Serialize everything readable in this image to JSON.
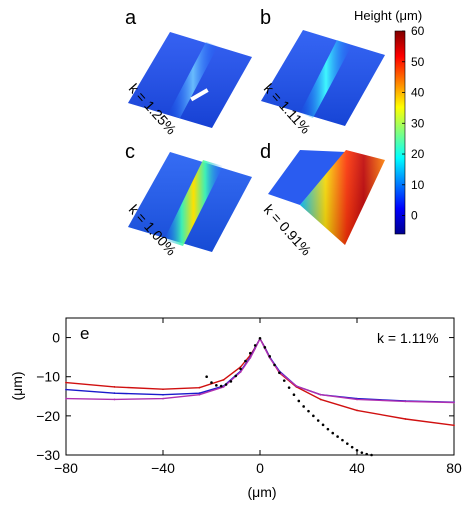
{
  "panels": {
    "a": {
      "letter": "a",
      "k_label": "k = 1.25%"
    },
    "b": {
      "letter": "b",
      "k_label": "k = 1.11%"
    },
    "c": {
      "letter": "c",
      "k_label": "k = 1.00%"
    },
    "d": {
      "letter": "d",
      "k_label": "k = 0.91%"
    }
  },
  "colorbar": {
    "title": "Height (μm)",
    "ticks": [
      "60",
      "50",
      "40",
      "30",
      "20",
      "10",
      "0"
    ],
    "range": [
      -6,
      60
    ],
    "colormap": "jet"
  },
  "chart_data": {
    "type": "scatter",
    "panel_letter": "e",
    "annotation": "k = 1.11%",
    "xlabel": "(μm)",
    "ylabel": "(μm)",
    "xlim": [
      -80,
      80
    ],
    "ylim": [
      -30,
      5
    ],
    "x_ticks": [
      -80,
      -40,
      0,
      40,
      80
    ],
    "y_ticks": [
      0,
      -10,
      -20,
      -30
    ],
    "x_tick_labels": [
      "−80",
      "−40",
      "0",
      "40",
      "80"
    ],
    "y_tick_labels": [
      "0",
      "−10",
      "−20",
      "−30"
    ],
    "grid": false,
    "series": [
      {
        "color": "#d01010",
        "kind": "line",
        "x": [
          -80,
          -60,
          -40,
          -25,
          -15,
          -8,
          -4,
          -2,
          0,
          2,
          4,
          8,
          15,
          25,
          40,
          60,
          80
        ],
        "y": [
          -11.5,
          -12.6,
          -13.2,
          -12.8,
          -10.8,
          -7.5,
          -4.5,
          -2.5,
          -0.3,
          -2.5,
          -5,
          -9,
          -12.6,
          -15.8,
          -18.6,
          -20.8,
          -22.4
        ]
      },
      {
        "color": "#1a1acc",
        "kind": "line",
        "x": [
          -80,
          -60,
          -40,
          -25,
          -15,
          -8,
          -4,
          -2,
          0,
          2,
          4,
          8,
          15,
          25,
          40,
          60,
          80
        ],
        "y": [
          -13.3,
          -14.2,
          -14.6,
          -14.2,
          -12.4,
          -8.6,
          -5,
          -2.6,
          -0.3,
          -2.6,
          -5,
          -8.6,
          -12.4,
          -14.6,
          -15.6,
          -16.2,
          -16.5
        ]
      },
      {
        "color": "#b030b0",
        "kind": "line",
        "x": [
          -80,
          -60,
          -40,
          -25,
          -15,
          -8,
          -4,
          -2,
          0,
          2,
          4,
          8,
          15,
          25,
          40,
          60,
          80
        ],
        "y": [
          -15.6,
          -15.8,
          -15.6,
          -14.6,
          -12.6,
          -8.8,
          -5.2,
          -2.8,
          -0.3,
          -2.8,
          -5.2,
          -8.8,
          -12.4,
          -14.6,
          -15.8,
          -16.3,
          -16.6
        ]
      },
      {
        "color": "#000000",
        "kind": "points",
        "x": [
          -22,
          -20,
          -18,
          -16,
          -14,
          -12,
          -10,
          -8,
          -6,
          -4,
          -2,
          0,
          2,
          4,
          6,
          8,
          10,
          12,
          14,
          16,
          18,
          20,
          22,
          24,
          26,
          28,
          30,
          32,
          34,
          36,
          38,
          40,
          42,
          44,
          46
        ],
        "y": [
          -10,
          -11.5,
          -12.2,
          -12.4,
          -12,
          -11.2,
          -9.8,
          -8,
          -6,
          -4,
          -2,
          -0.2,
          -2.5,
          -4.8,
          -7,
          -9,
          -11,
          -12.8,
          -14.6,
          -16.2,
          -17.6,
          -18.8,
          -20,
          -21.2,
          -22.3,
          -23.4,
          -24.4,
          -25.3,
          -26.2,
          -27.1,
          -28,
          -28.8,
          -29.4,
          -29.8,
          -30
        ]
      }
    ]
  }
}
